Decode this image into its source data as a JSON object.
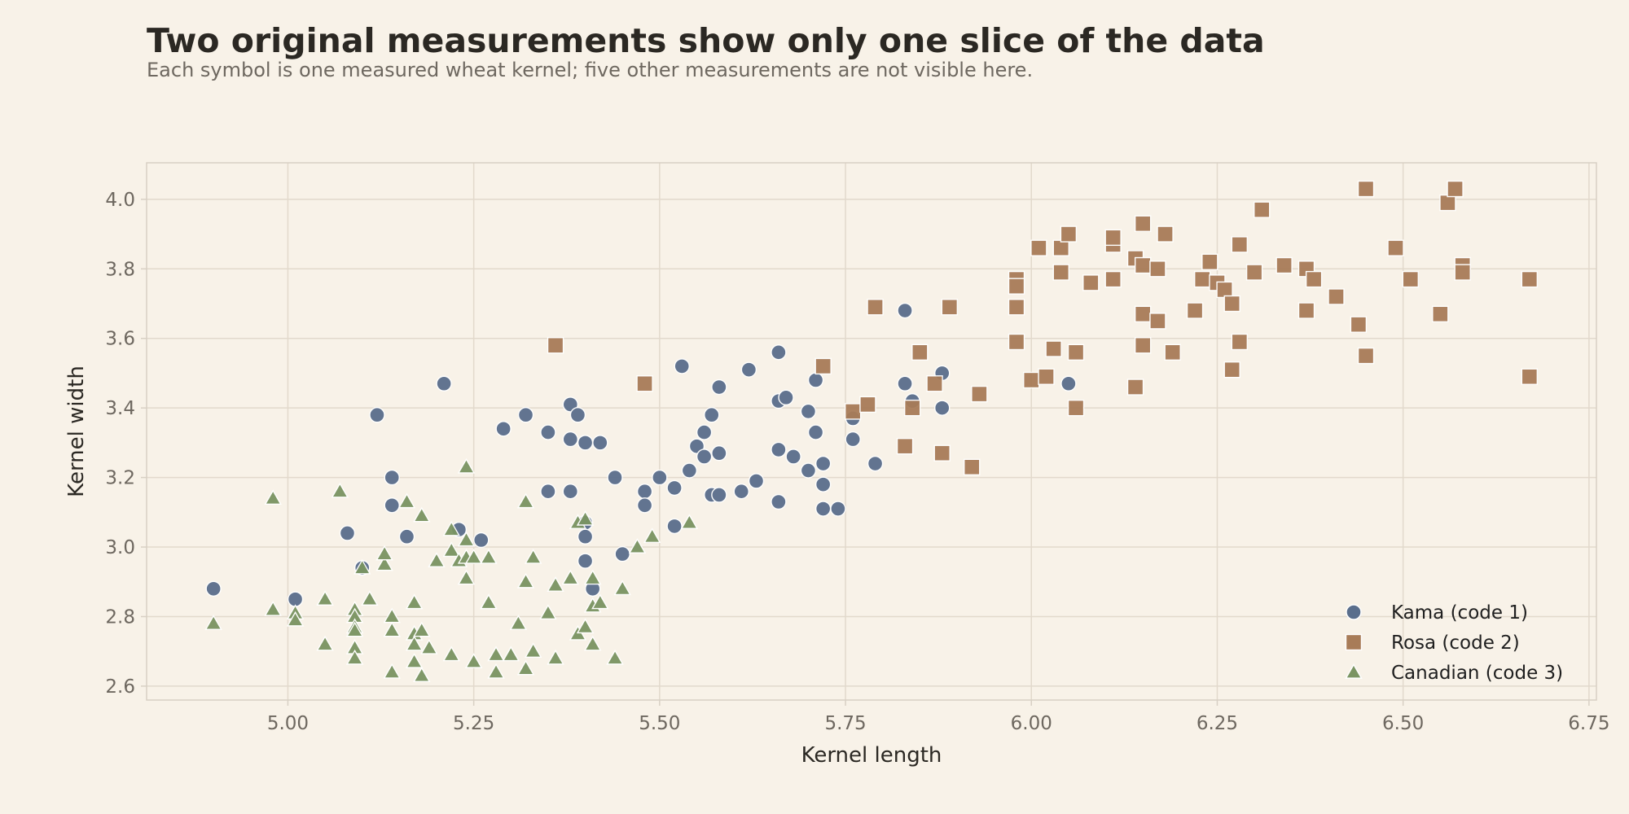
{
  "title": "Two original measurements show only one slice of the data",
  "subtitle": "Each symbol is one measured wheat kernel; five other measurements are not visible here.",
  "chart_data": {
    "type": "scatter",
    "xlabel": "Kernel length",
    "ylabel": "Kernel width",
    "xlim": [
      4.81,
      6.76
    ],
    "ylim": [
      2.56,
      4.105
    ],
    "xticks": [
      "5.00",
      "5.25",
      "5.50",
      "5.75",
      "6.00",
      "6.25",
      "6.50",
      "6.75"
    ],
    "yticks": [
      "2.6",
      "2.8",
      "3.0",
      "3.2",
      "3.4",
      "3.6",
      "3.8",
      "4.0"
    ],
    "grid": true,
    "legend_position": "bottom-right",
    "series": [
      {
        "name": "Kama (code 1)",
        "marker": "circle",
        "color": "#5a6e8c",
        "points": [
          [
            4.9,
            2.88
          ],
          [
            5.01,
            2.85
          ],
          [
            5.08,
            3.04
          ],
          [
            5.1,
            2.94
          ],
          [
            5.12,
            3.38
          ],
          [
            5.14,
            3.2
          ],
          [
            5.14,
            3.12
          ],
          [
            5.16,
            3.03
          ],
          [
            5.21,
            3.47
          ],
          [
            5.23,
            3.05
          ],
          [
            5.26,
            3.02
          ],
          [
            5.29,
            3.34
          ],
          [
            5.32,
            3.38
          ],
          [
            5.35,
            3.33
          ],
          [
            5.35,
            3.16
          ],
          [
            5.35,
            3.16
          ],
          [
            5.38,
            3.16
          ],
          [
            5.38,
            3.41
          ],
          [
            5.38,
            3.31
          ],
          [
            5.39,
            3.38
          ],
          [
            5.4,
            3.3
          ],
          [
            5.4,
            3.07
          ],
          [
            5.4,
            3.03
          ],
          [
            5.4,
            2.96
          ],
          [
            5.41,
            2.88
          ],
          [
            5.42,
            3.3
          ],
          [
            5.44,
            3.2
          ],
          [
            5.45,
            2.98
          ],
          [
            5.48,
            3.16
          ],
          [
            5.48,
            3.12
          ],
          [
            5.5,
            3.2
          ],
          [
            5.52,
            3.06
          ],
          [
            5.52,
            3.17
          ],
          [
            5.53,
            3.52
          ],
          [
            5.54,
            3.22
          ],
          [
            5.55,
            3.29
          ],
          [
            5.56,
            3.33
          ],
          [
            5.56,
            3.26
          ],
          [
            5.57,
            3.38
          ],
          [
            5.57,
            3.15
          ],
          [
            5.58,
            3.46
          ],
          [
            5.58,
            3.15
          ],
          [
            5.58,
            3.27
          ],
          [
            5.61,
            3.16
          ],
          [
            5.62,
            3.51
          ],
          [
            5.63,
            3.19
          ],
          [
            5.66,
            3.56
          ],
          [
            5.66,
            3.28
          ],
          [
            5.66,
            3.13
          ],
          [
            5.66,
            3.42
          ],
          [
            5.67,
            3.43
          ],
          [
            5.68,
            3.26
          ],
          [
            5.7,
            3.39
          ],
          [
            5.7,
            3.22
          ],
          [
            5.71,
            3.48
          ],
          [
            5.71,
            3.33
          ],
          [
            5.72,
            3.24
          ],
          [
            5.72,
            3.11
          ],
          [
            5.72,
            3.18
          ],
          [
            5.74,
            3.11
          ],
          [
            5.76,
            3.37
          ],
          [
            5.76,
            3.31
          ],
          [
            5.79,
            3.24
          ],
          [
            5.83,
            3.68
          ],
          [
            5.83,
            3.47
          ],
          [
            5.84,
            3.42
          ],
          [
            5.88,
            3.4
          ],
          [
            5.88,
            3.5
          ],
          [
            6.05,
            3.47
          ]
        ]
      },
      {
        "name": "Rosa (code 2)",
        "marker": "square",
        "color": "#a87c58",
        "points": [
          [
            5.36,
            3.58
          ],
          [
            5.48,
            3.47
          ],
          [
            5.72,
            3.52
          ],
          [
            5.76,
            3.39
          ],
          [
            5.78,
            3.41
          ],
          [
            5.79,
            3.69
          ],
          [
            5.83,
            3.29
          ],
          [
            5.84,
            3.4
          ],
          [
            5.85,
            3.56
          ],
          [
            5.87,
            3.47
          ],
          [
            5.88,
            3.27
          ],
          [
            5.89,
            3.69
          ],
          [
            5.92,
            3.23
          ],
          [
            5.93,
            3.44
          ],
          [
            5.98,
            3.77
          ],
          [
            5.98,
            3.75
          ],
          [
            5.98,
            3.69
          ],
          [
            5.98,
            3.59
          ],
          [
            6.0,
            3.48
          ],
          [
            6.01,
            3.86
          ],
          [
            6.02,
            3.49
          ],
          [
            6.03,
            3.57
          ],
          [
            6.04,
            3.86
          ],
          [
            6.04,
            3.79
          ],
          [
            6.05,
            3.9
          ],
          [
            6.06,
            3.56
          ],
          [
            6.06,
            3.4
          ],
          [
            6.08,
            3.76
          ],
          [
            6.11,
            3.77
          ],
          [
            6.11,
            3.87
          ],
          [
            6.11,
            3.89
          ],
          [
            6.14,
            3.46
          ],
          [
            6.14,
            3.83
          ],
          [
            6.15,
            3.58
          ],
          [
            6.15,
            3.67
          ],
          [
            6.15,
            3.81
          ],
          [
            6.15,
            3.93
          ],
          [
            6.17,
            3.8
          ],
          [
            6.17,
            3.65
          ],
          [
            6.18,
            3.9
          ],
          [
            6.19,
            3.56
          ],
          [
            6.22,
            3.68
          ],
          [
            6.23,
            3.77
          ],
          [
            6.24,
            3.82
          ],
          [
            6.25,
            3.76
          ],
          [
            6.26,
            3.74
          ],
          [
            6.27,
            3.7
          ],
          [
            6.27,
            3.51
          ],
          [
            6.28,
            3.59
          ],
          [
            6.28,
            3.87
          ],
          [
            6.3,
            3.79
          ],
          [
            6.31,
            3.97
          ],
          [
            6.34,
            3.81
          ],
          [
            6.37,
            3.8
          ],
          [
            6.37,
            3.68
          ],
          [
            6.38,
            3.77
          ],
          [
            6.41,
            3.72
          ],
          [
            6.44,
            3.64
          ],
          [
            6.45,
            3.55
          ],
          [
            6.45,
            4.03
          ],
          [
            6.49,
            3.86
          ],
          [
            6.51,
            3.77
          ],
          [
            6.55,
            3.67
          ],
          [
            6.56,
            3.99
          ],
          [
            6.57,
            4.03
          ],
          [
            6.58,
            3.81
          ],
          [
            6.58,
            3.79
          ],
          [
            6.67,
            3.49
          ],
          [
            6.67,
            3.77
          ]
        ]
      },
      {
        "name": "Canadian (code 3)",
        "marker": "triangle",
        "color": "#7a9462",
        "points": [
          [
            4.9,
            2.78
          ],
          [
            4.98,
            2.82
          ],
          [
            4.98,
            3.14
          ],
          [
            5.01,
            2.81
          ],
          [
            5.01,
            2.79
          ],
          [
            5.05,
            2.72
          ],
          [
            5.05,
            2.85
          ],
          [
            5.07,
            3.16
          ],
          [
            5.09,
            2.82
          ],
          [
            5.09,
            2.8
          ],
          [
            5.09,
            2.77
          ],
          [
            5.09,
            2.76
          ],
          [
            5.09,
            2.71
          ],
          [
            5.09,
            2.68
          ],
          [
            5.1,
            2.94
          ],
          [
            5.11,
            2.85
          ],
          [
            5.13,
            2.95
          ],
          [
            5.13,
            2.98
          ],
          [
            5.14,
            2.8
          ],
          [
            5.14,
            2.76
          ],
          [
            5.14,
            2.64
          ],
          [
            5.16,
            3.13
          ],
          [
            5.17,
            2.84
          ],
          [
            5.17,
            2.84
          ],
          [
            5.17,
            2.75
          ],
          [
            5.17,
            2.72
          ],
          [
            5.17,
            2.67
          ],
          [
            5.18,
            2.76
          ],
          [
            5.18,
            2.63
          ],
          [
            5.18,
            3.09
          ],
          [
            5.19,
            2.71
          ],
          [
            5.2,
            2.96
          ],
          [
            5.22,
            2.99
          ],
          [
            5.22,
            2.69
          ],
          [
            5.22,
            3.05
          ],
          [
            5.23,
            2.96
          ],
          [
            5.24,
            3.02
          ],
          [
            5.24,
            2.97
          ],
          [
            5.24,
            3.23
          ],
          [
            5.24,
            2.91
          ],
          [
            5.25,
            2.97
          ],
          [
            5.25,
            2.67
          ],
          [
            5.27,
            2.97
          ],
          [
            5.27,
            2.84
          ],
          [
            5.27,
            2.84
          ],
          [
            5.28,
            2.69
          ],
          [
            5.28,
            2.64
          ],
          [
            5.3,
            2.69
          ],
          [
            5.31,
            2.78
          ],
          [
            5.32,
            2.65
          ],
          [
            5.32,
            2.9
          ],
          [
            5.32,
            3.13
          ],
          [
            5.33,
            2.97
          ],
          [
            5.33,
            2.7
          ],
          [
            5.35,
            2.81
          ],
          [
            5.36,
            2.89
          ],
          [
            5.36,
            2.68
          ],
          [
            5.38,
            2.91
          ],
          [
            5.39,
            3.07
          ],
          [
            5.39,
            2.75
          ],
          [
            5.4,
            3.08
          ],
          [
            5.4,
            2.77
          ],
          [
            5.41,
            2.91
          ],
          [
            5.41,
            2.83
          ],
          [
            5.41,
            2.72
          ],
          [
            5.42,
            2.84
          ],
          [
            5.44,
            2.68
          ],
          [
            5.45,
            2.88
          ],
          [
            5.47,
            3.0
          ],
          [
            5.49,
            3.03
          ],
          [
            5.54,
            3.07
          ]
        ]
      }
    ]
  }
}
